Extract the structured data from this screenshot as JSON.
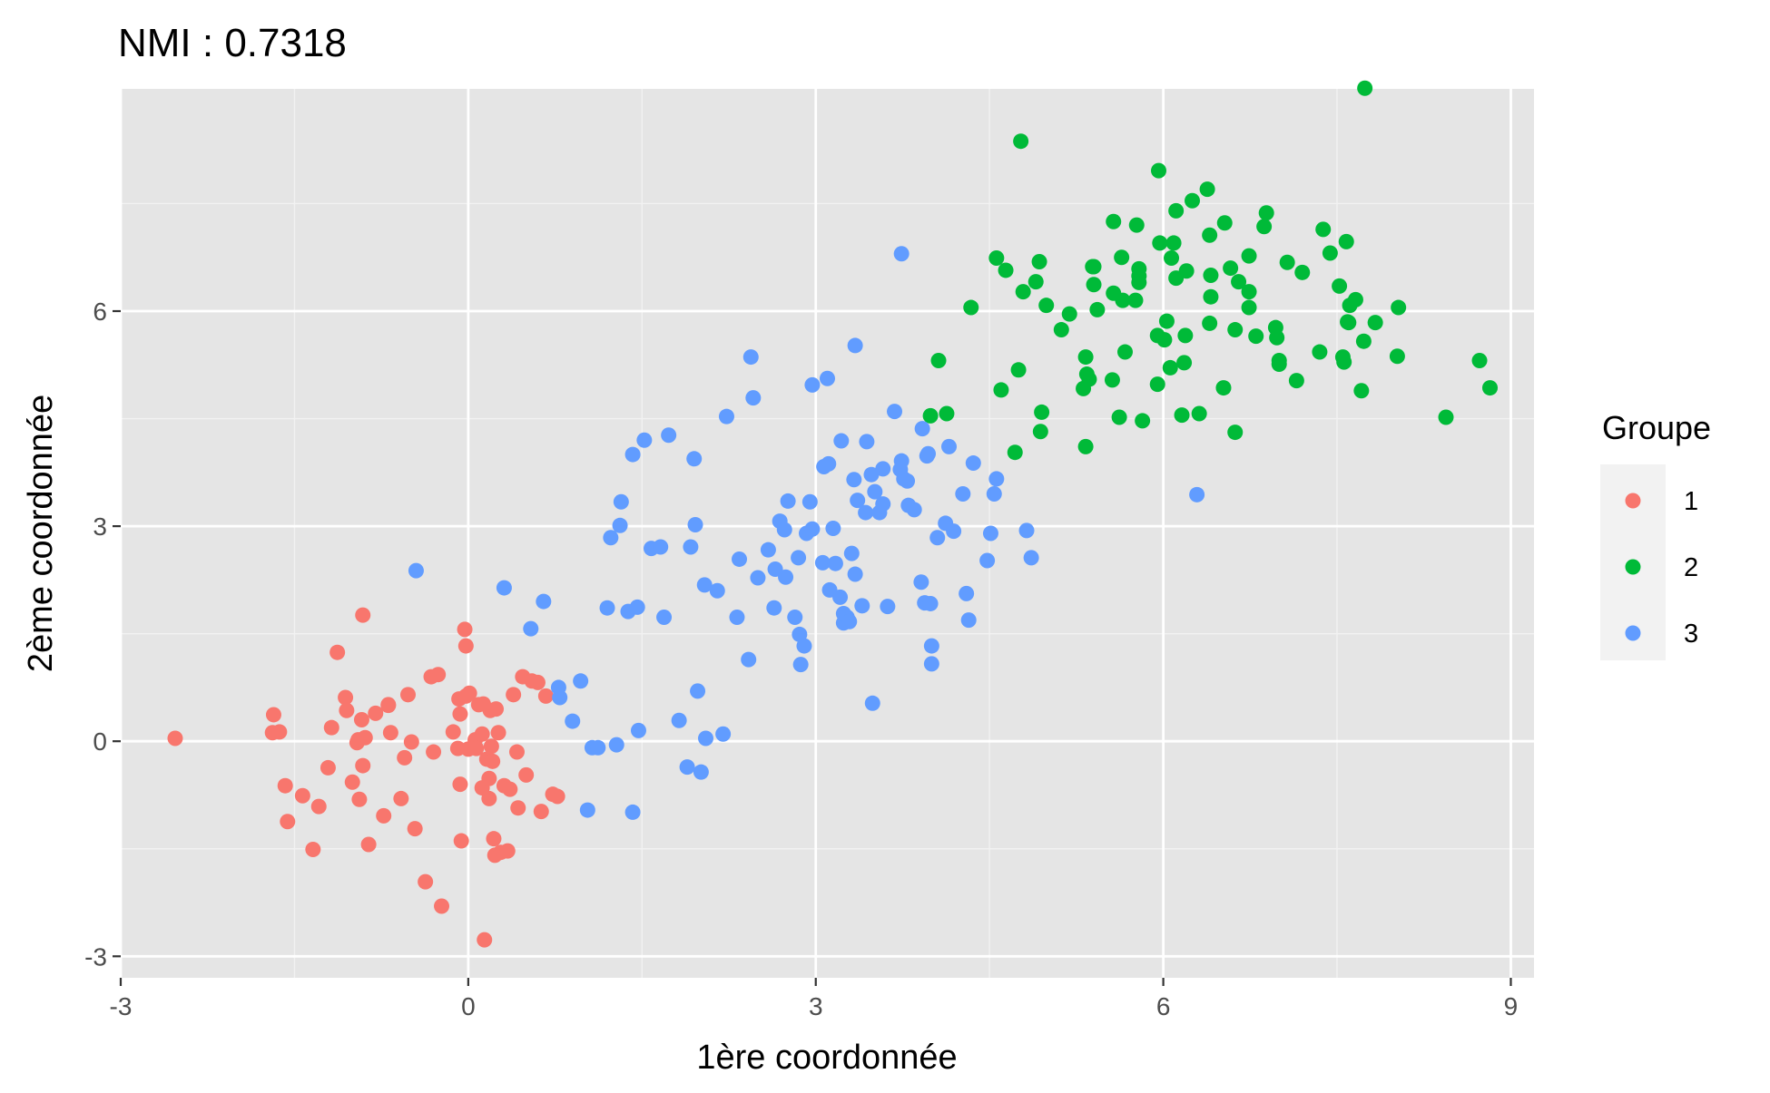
{
  "chart_data": {
    "type": "scatter",
    "title": "NMI : 0.7318",
    "xlabel": "1ère coordonnée",
    "ylabel": "2ème coordonnée",
    "xlim": [
      -3,
      9.2
    ],
    "ylim": [
      -3.3,
      9.1
    ],
    "xticks": [
      -3,
      0,
      3,
      6,
      9
    ],
    "yticks": [
      -3,
      0,
      3,
      6
    ],
    "xtick_labels": [
      "-3",
      "0",
      "3",
      "6",
      "9"
    ],
    "ytick_labels": [
      "-3",
      "0",
      "3",
      "6"
    ],
    "grid": true,
    "background": "#e5e5e5",
    "legend": {
      "title": "Groupe",
      "position": "right"
    },
    "series": [
      {
        "name": "1",
        "color": "#f8766d",
        "points": [
          [
            -2.53,
            0.04
          ],
          [
            -1.68,
            0.37
          ],
          [
            -1.69,
            0.12
          ],
          [
            -1.63,
            0.13
          ],
          [
            -1.58,
            -0.62
          ],
          [
            -1.56,
            -1.12
          ],
          [
            -1.43,
            -0.76
          ],
          [
            -1.34,
            -1.51
          ],
          [
            -1.29,
            -0.91
          ],
          [
            -1.21,
            -0.37
          ],
          [
            -1.18,
            0.19
          ],
          [
            -1.13,
            1.24
          ],
          [
            -1.06,
            0.61
          ],
          [
            -1.05,
            0.43
          ],
          [
            -1.0,
            -0.57
          ],
          [
            -0.96,
            -0.02
          ],
          [
            -0.95,
            0.02
          ],
          [
            -0.94,
            -0.81
          ],
          [
            -0.92,
            0.3
          ],
          [
            -0.91,
            -0.34
          ],
          [
            -0.91,
            1.76
          ],
          [
            -0.89,
            0.05
          ],
          [
            -0.86,
            -1.44
          ],
          [
            -0.8,
            0.39
          ],
          [
            -0.73,
            -1.04
          ],
          [
            -0.69,
            0.5
          ],
          [
            -0.69,
            0.51
          ],
          [
            -0.67,
            0.12
          ],
          [
            -0.58,
            -0.8
          ],
          [
            -0.55,
            -0.23
          ],
          [
            -0.52,
            0.65
          ],
          [
            -0.49,
            -0.01
          ],
          [
            -0.46,
            -1.22
          ],
          [
            -0.37,
            -1.96
          ],
          [
            -0.32,
            0.9
          ],
          [
            -0.3,
            -0.15
          ],
          [
            -0.26,
            0.93
          ],
          [
            -0.23,
            -2.3
          ],
          [
            -0.13,
            0.13
          ],
          [
            -0.09,
            -0.1
          ],
          [
            -0.08,
            0.59
          ],
          [
            -0.07,
            0.38
          ],
          [
            -0.07,
            -0.6
          ],
          [
            -0.06,
            -1.39
          ],
          [
            -0.03,
            1.56
          ],
          [
            -0.02,
            1.33
          ],
          [
            -0.02,
            0.63
          ],
          [
            0.0,
            -0.11
          ],
          [
            0.01,
            0.67
          ],
          [
            0.06,
            0.02
          ],
          [
            0.07,
            -0.1
          ],
          [
            0.09,
            0.51
          ],
          [
            0.12,
            0.1
          ],
          [
            0.12,
            -0.65
          ],
          [
            0.13,
            0.52
          ],
          [
            0.14,
            -2.77
          ],
          [
            0.16,
            -0.25
          ],
          [
            0.18,
            -0.52
          ],
          [
            0.18,
            -0.8
          ],
          [
            0.19,
            0.43
          ],
          [
            0.2,
            -0.07
          ],
          [
            0.21,
            -0.28
          ],
          [
            0.22,
            -1.36
          ],
          [
            0.23,
            -1.59
          ],
          [
            0.24,
            0.45
          ],
          [
            0.26,
            0.12
          ],
          [
            0.28,
            -1.55
          ],
          [
            0.31,
            -0.62
          ],
          [
            0.34,
            -1.53
          ],
          [
            0.36,
            -0.67
          ],
          [
            0.39,
            0.65
          ],
          [
            0.42,
            -0.15
          ],
          [
            0.43,
            -0.93
          ],
          [
            0.47,
            0.9
          ],
          [
            0.5,
            -0.47
          ],
          [
            0.55,
            0.84
          ],
          [
            0.6,
            0.82
          ],
          [
            0.63,
            -0.98
          ],
          [
            0.67,
            0.63
          ],
          [
            0.73,
            -0.74
          ],
          [
            0.77,
            -0.77
          ]
        ]
      },
      {
        "name": "2",
        "color": "#00ba38",
        "points": [
          [
            3.99,
            4.54
          ],
          [
            4.06,
            5.31
          ],
          [
            4.13,
            4.57
          ],
          [
            4.34,
            6.05
          ],
          [
            4.56,
            6.74
          ],
          [
            4.6,
            4.9
          ],
          [
            4.64,
            6.57
          ],
          [
            4.72,
            4.03
          ],
          [
            4.75,
            5.18
          ],
          [
            4.77,
            8.37
          ],
          [
            4.79,
            6.27
          ],
          [
            4.9,
            6.41
          ],
          [
            4.93,
            6.69
          ],
          [
            4.94,
            4.32
          ],
          [
            4.95,
            4.59
          ],
          [
            4.99,
            6.08
          ],
          [
            5.12,
            5.74
          ],
          [
            5.19,
            5.96
          ],
          [
            5.31,
            4.92
          ],
          [
            5.33,
            4.11
          ],
          [
            5.33,
            5.36
          ],
          [
            5.34,
            5.12
          ],
          [
            5.36,
            5.05
          ],
          [
            5.39,
            6.62
          ],
          [
            5.4,
            6.62
          ],
          [
            5.4,
            6.37
          ],
          [
            5.43,
            6.02
          ],
          [
            5.56,
            5.04
          ],
          [
            5.57,
            6.25
          ],
          [
            5.57,
            7.25
          ],
          [
            5.62,
            4.52
          ],
          [
            5.64,
            6.75
          ],
          [
            5.65,
            6.15
          ],
          [
            5.67,
            5.43
          ],
          [
            5.76,
            6.15
          ],
          [
            5.77,
            7.2
          ],
          [
            5.79,
            6.49
          ],
          [
            5.79,
            6.59
          ],
          [
            5.79,
            6.4
          ],
          [
            5.82,
            4.47
          ],
          [
            5.95,
            5.66
          ],
          [
            5.95,
            4.98
          ],
          [
            5.96,
            7.96
          ],
          [
            5.97,
            6.95
          ],
          [
            6.01,
            5.6
          ],
          [
            6.03,
            5.86
          ],
          [
            6.06,
            5.21
          ],
          [
            6.07,
            6.74
          ],
          [
            6.09,
            6.95
          ],
          [
            6.11,
            6.46
          ],
          [
            6.11,
            7.4
          ],
          [
            6.16,
            4.55
          ],
          [
            6.18,
            5.28
          ],
          [
            6.19,
            5.66
          ],
          [
            6.2,
            6.56
          ],
          [
            6.25,
            7.54
          ],
          [
            6.31,
            4.57
          ],
          [
            6.38,
            7.7
          ],
          [
            6.4,
            7.06
          ],
          [
            6.4,
            5.83
          ],
          [
            6.41,
            6.2
          ],
          [
            6.41,
            6.5
          ],
          [
            6.52,
            4.93
          ],
          [
            6.53,
            7.23
          ],
          [
            6.58,
            6.6
          ],
          [
            6.62,
            5.74
          ],
          [
            6.62,
            4.31
          ],
          [
            6.65,
            6.41
          ],
          [
            6.74,
            6.27
          ],
          [
            6.74,
            6.77
          ],
          [
            6.74,
            6.05
          ],
          [
            6.8,
            5.65
          ],
          [
            6.87,
            7.18
          ],
          [
            6.89,
            7.37
          ],
          [
            6.97,
            5.77
          ],
          [
            6.98,
            5.63
          ],
          [
            7.0,
            5.31
          ],
          [
            7.0,
            5.26
          ],
          [
            7.07,
            6.68
          ],
          [
            7.15,
            5.03
          ],
          [
            7.2,
            6.54
          ],
          [
            7.35,
            5.43
          ],
          [
            7.38,
            7.14
          ],
          [
            7.44,
            6.81
          ],
          [
            7.52,
            6.35
          ],
          [
            7.55,
            5.36
          ],
          [
            7.56,
            5.29
          ],
          [
            7.58,
            6.97
          ],
          [
            7.59,
            5.85
          ],
          [
            7.6,
            5.84
          ],
          [
            7.61,
            6.08
          ],
          [
            7.66,
            6.16
          ],
          [
            7.71,
            4.89
          ],
          [
            7.73,
            5.58
          ],
          [
            7.74,
            9.11
          ],
          [
            7.83,
            5.84
          ],
          [
            8.02,
            5.37
          ],
          [
            8.03,
            6.05
          ],
          [
            8.44,
            4.52
          ],
          [
            8.73,
            5.31
          ],
          [
            8.82,
            4.93
          ]
        ]
      },
      {
        "name": "3",
        "color": "#619cff",
        "points": [
          [
            -0.45,
            2.38
          ],
          [
            0.31,
            2.14
          ],
          [
            0.54,
            1.57
          ],
          [
            0.65,
            1.95
          ],
          [
            0.78,
            0.75
          ],
          [
            0.79,
            0.61
          ],
          [
            0.9,
            0.28
          ],
          [
            0.97,
            0.84
          ],
          [
            1.03,
            -0.96
          ],
          [
            1.07,
            -0.09
          ],
          [
            1.12,
            -0.09
          ],
          [
            1.2,
            1.86
          ],
          [
            1.23,
            2.84
          ],
          [
            1.28,
            -0.05
          ],
          [
            1.31,
            3.01
          ],
          [
            1.32,
            3.34
          ],
          [
            1.38,
            1.81
          ],
          [
            1.42,
            4.0
          ],
          [
            1.42,
            -0.99
          ],
          [
            1.46,
            1.87
          ],
          [
            1.47,
            0.15
          ],
          [
            1.52,
            4.2
          ],
          [
            1.58,
            2.69
          ],
          [
            1.66,
            2.71
          ],
          [
            1.69,
            1.73
          ],
          [
            1.73,
            4.27
          ],
          [
            1.82,
            0.29
          ],
          [
            1.89,
            -0.36
          ],
          [
            1.92,
            2.71
          ],
          [
            1.95,
            3.94
          ],
          [
            1.96,
            3.02
          ],
          [
            1.98,
            0.7
          ],
          [
            2.01,
            -0.43
          ],
          [
            2.04,
            2.18
          ],
          [
            2.05,
            0.04
          ],
          [
            2.15,
            2.1
          ],
          [
            2.2,
            0.1
          ],
          [
            2.23,
            4.53
          ],
          [
            2.32,
            1.73
          ],
          [
            2.34,
            2.54
          ],
          [
            2.42,
            1.14
          ],
          [
            2.44,
            5.36
          ],
          [
            2.46,
            4.79
          ],
          [
            2.5,
            2.28
          ],
          [
            2.59,
            2.67
          ],
          [
            2.64,
            1.86
          ],
          [
            2.65,
            2.4
          ],
          [
            2.69,
            3.07
          ],
          [
            2.73,
            2.95
          ],
          [
            2.74,
            2.29
          ],
          [
            2.76,
            3.35
          ],
          [
            2.82,
            1.73
          ],
          [
            2.85,
            2.56
          ],
          [
            2.86,
            1.49
          ],
          [
            2.87,
            1.07
          ],
          [
            2.9,
            1.33
          ],
          [
            2.92,
            2.9
          ],
          [
            2.95,
            3.34
          ],
          [
            2.97,
            4.97
          ],
          [
            2.97,
            2.96
          ],
          [
            3.06,
            2.49
          ],
          [
            3.07,
            3.83
          ],
          [
            3.1,
            5.06
          ],
          [
            3.11,
            3.87
          ],
          [
            3.12,
            2.11
          ],
          [
            3.15,
            2.97
          ],
          [
            3.17,
            2.48
          ],
          [
            3.21,
            2.01
          ],
          [
            3.22,
            4.19
          ],
          [
            3.24,
            1.65
          ],
          [
            3.24,
            1.78
          ],
          [
            3.27,
            1.73
          ],
          [
            3.29,
            1.67
          ],
          [
            3.31,
            2.62
          ],
          [
            3.33,
            3.65
          ],
          [
            3.34,
            5.52
          ],
          [
            3.34,
            2.33
          ],
          [
            3.36,
            3.36
          ],
          [
            3.4,
            1.89
          ],
          [
            3.43,
            3.19
          ],
          [
            3.44,
            4.18
          ],
          [
            3.48,
            3.72
          ],
          [
            3.49,
            0.53
          ],
          [
            3.51,
            3.48
          ],
          [
            3.55,
            3.19
          ],
          [
            3.58,
            3.31
          ],
          [
            3.58,
            3.8
          ],
          [
            3.62,
            1.88
          ],
          [
            3.68,
            4.6
          ],
          [
            3.73,
            3.79
          ],
          [
            3.74,
            3.91
          ],
          [
            3.74,
            6.8
          ],
          [
            3.76,
            3.66
          ],
          [
            3.79,
            3.63
          ],
          [
            3.8,
            3.29
          ],
          [
            3.85,
            3.23
          ],
          [
            3.91,
            2.22
          ],
          [
            3.92,
            4.36
          ],
          [
            3.94,
            1.93
          ],
          [
            3.96,
            3.98
          ],
          [
            3.97,
            4.01
          ],
          [
            3.99,
            1.92
          ],
          [
            4.0,
            1.33
          ],
          [
            4.0,
            1.08
          ],
          [
            4.05,
            2.84
          ],
          [
            4.12,
            3.04
          ],
          [
            4.15,
            4.11
          ],
          [
            4.19,
            2.93
          ],
          [
            4.27,
            3.45
          ],
          [
            4.3,
            2.06
          ],
          [
            4.32,
            1.69
          ],
          [
            4.36,
            3.88
          ],
          [
            4.48,
            2.52
          ],
          [
            4.51,
            2.9
          ],
          [
            4.54,
            3.45
          ],
          [
            4.56,
            3.66
          ],
          [
            4.82,
            2.94
          ],
          [
            4.86,
            2.56
          ],
          [
            6.29,
            3.44
          ]
        ]
      }
    ]
  }
}
